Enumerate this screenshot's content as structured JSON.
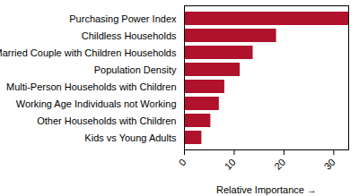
{
  "chart_data": {
    "type": "bar",
    "orientation": "horizontal",
    "x_label": "Relative Importance",
    "categories": [
      "Purchasing Power Index",
      "Childless Households",
      "Married Couple with Children Households",
      "Population Density",
      "Multi-Person Households with Children",
      "Working Age Individuals not Working",
      "Other Households with Children",
      "Kids vs Young Adults"
    ],
    "values": [
      33,
      18.5,
      13.8,
      11.2,
      8.1,
      7,
      5.3,
      3.5
    ],
    "color": "#b0112b",
    "xlim": [
      0,
      33
    ],
    "xticks": [
      0,
      10,
      20,
      30
    ],
    "grid": false
  }
}
